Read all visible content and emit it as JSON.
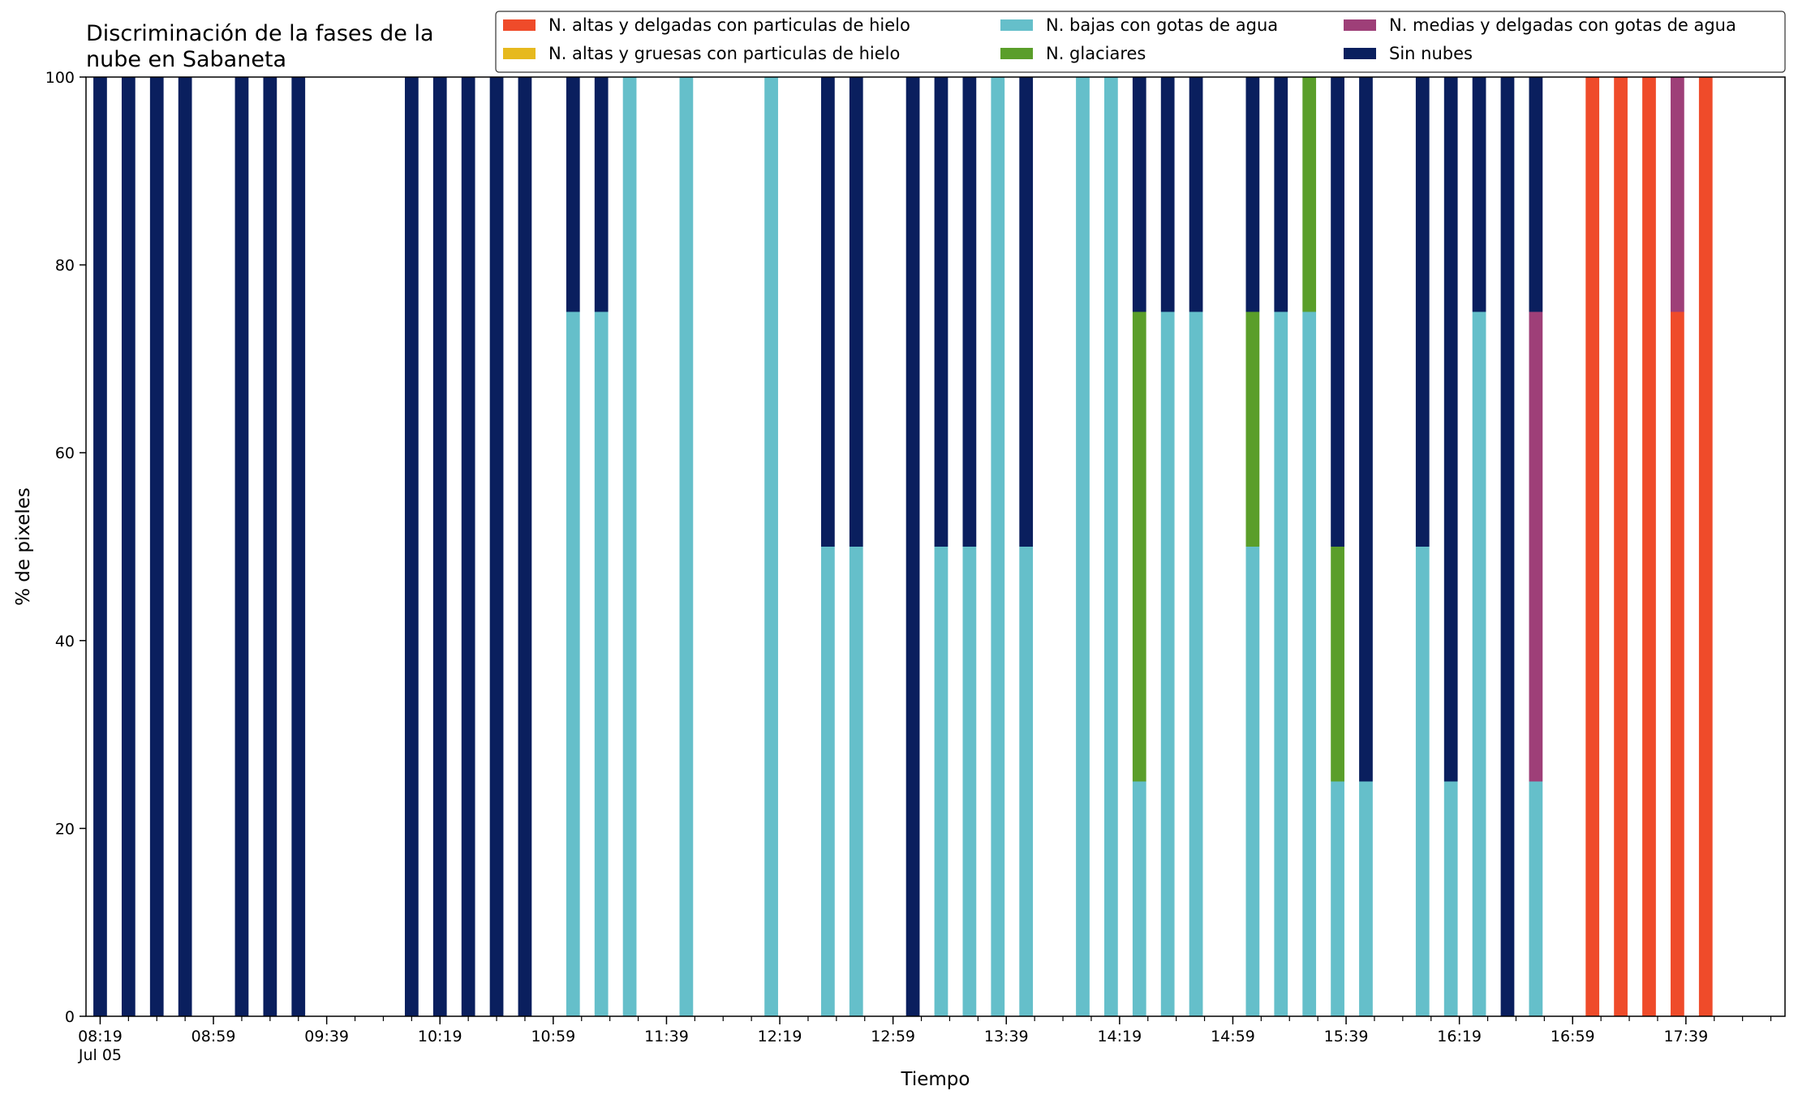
{
  "chart_data": {
    "type": "bar",
    "stacked": true,
    "title": "Discriminación de la fases de la\nnube en Sabaneta",
    "xlabel": "Tiempo",
    "ylabel": "% de pixeles",
    "ylim": [
      0,
      100
    ],
    "yticks": [
      0,
      20,
      40,
      60,
      80,
      100
    ],
    "xlim": [
      "08:14",
      "18:14"
    ],
    "xtick_labels": [
      {
        "time": "08:19",
        "label": "08:19",
        "sublabel": "Jul 05"
      },
      {
        "time": "08:59",
        "label": "08:59"
      },
      {
        "time": "09:39",
        "label": "09:39"
      },
      {
        "time": "10:19",
        "label": "10:19"
      },
      {
        "time": "10:59",
        "label": "10:59"
      },
      {
        "time": "11:39",
        "label": "11:39"
      },
      {
        "time": "12:19",
        "label": "12:19"
      },
      {
        "time": "12:59",
        "label": "12:59"
      },
      {
        "time": "13:39",
        "label": "13:39"
      },
      {
        "time": "14:19",
        "label": "14:19"
      },
      {
        "time": "14:59",
        "label": "14:59"
      },
      {
        "time": "15:39",
        "label": "15:39"
      },
      {
        "time": "16:19",
        "label": "16:19"
      },
      {
        "time": "16:59",
        "label": "16:59"
      },
      {
        "time": "17:39",
        "label": "17:39"
      }
    ],
    "minor_tick_interval_minutes": 10,
    "grid": false,
    "legend_position": "top-right",
    "legend_columns": 3,
    "series": [
      {
        "name": "N. altas y delgadas con particulas de hielo",
        "color": "#ef4b2a"
      },
      {
        "name": "N. altas y gruesas con particulas de hielo",
        "color": "#e6b91e"
      },
      {
        "name": "N. bajas con gotas de agua",
        "color": "#65bfca"
      },
      {
        "name": "N. glaciares",
        "color": "#5a9e2a"
      },
      {
        "name": "N. medias y delgadas con gotas de agua",
        "color": "#9e3f78"
      },
      {
        "name": "Sin nubes",
        "color": "#0a1f5e"
      }
    ],
    "x": [
      "08:19",
      "08:29",
      "08:39",
      "08:49",
      "09:09",
      "09:19",
      "09:29",
      "10:09",
      "10:19",
      "10:29",
      "10:39",
      "10:49",
      "11:06",
      "11:16",
      "11:26",
      "11:46",
      "12:16",
      "12:36",
      "12:46",
      "13:06",
      "13:16",
      "13:26",
      "13:36",
      "13:46",
      "14:06",
      "14:16",
      "14:26",
      "14:36",
      "14:46",
      "15:06",
      "15:16",
      "15:26",
      "15:36",
      "15:46",
      "16:06",
      "16:16",
      "16:26",
      "16:36",
      "16:46",
      "17:06",
      "17:16",
      "17:26",
      "17:36",
      "17:46"
    ],
    "values": {
      "N. altas y delgadas con particulas de hielo": [
        0,
        0,
        0,
        0,
        0,
        0,
        0,
        0,
        0,
        0,
        0,
        0,
        0,
        0,
        0,
        0,
        0,
        0,
        0,
        0,
        0,
        0,
        0,
        0,
        0,
        0,
        0,
        0,
        0,
        0,
        0,
        0,
        0,
        0,
        0,
        0,
        0,
        0,
        0,
        100,
        100,
        100,
        75,
        100
      ],
      "N. altas y gruesas con particulas de hielo": [
        0,
        0,
        0,
        0,
        0,
        0,
        0,
        0,
        0,
        0,
        0,
        0,
        0,
        0,
        0,
        0,
        0,
        0,
        0,
        0,
        0,
        0,
        0,
        0,
        0,
        0,
        0,
        0,
        0,
        0,
        0,
        0,
        0,
        0,
        0,
        0,
        0,
        0,
        0,
        0,
        0,
        0,
        0,
        0
      ],
      "N. bajas con gotas de agua": [
        0,
        0,
        0,
        0,
        0,
        0,
        0,
        0,
        0,
        0,
        0,
        0,
        75,
        75,
        100,
        100,
        100,
        50,
        50,
        0,
        50,
        50,
        100,
        50,
        100,
        100,
        25,
        75,
        75,
        50,
        75,
        75,
        25,
        25,
        50,
        25,
        75,
        0,
        25,
        0,
        0,
        0,
        0,
        0
      ],
      "N. glaciares": [
        0,
        0,
        0,
        0,
        0,
        0,
        0,
        0,
        0,
        0,
        0,
        0,
        0,
        0,
        0,
        0,
        0,
        0,
        0,
        0,
        0,
        0,
        0,
        0,
        0,
        0,
        50,
        0,
        0,
        25,
        0,
        25,
        25,
        0,
        0,
        0,
        0,
        0,
        0,
        0,
        0,
        0,
        0,
        0
      ],
      "N. medias y delgadas con gotas de agua": [
        0,
        0,
        0,
        0,
        0,
        0,
        0,
        0,
        0,
        0,
        0,
        0,
        0,
        0,
        0,
        0,
        0,
        0,
        0,
        0,
        0,
        0,
        0,
        0,
        0,
        0,
        0,
        0,
        0,
        0,
        0,
        0,
        0,
        0,
        0,
        0,
        0,
        0,
        50,
        0,
        0,
        0,
        25,
        0
      ],
      "Sin nubes": [
        100,
        100,
        100,
        100,
        100,
        100,
        100,
        100,
        100,
        100,
        100,
        100,
        25,
        25,
        0,
        0,
        0,
        50,
        50,
        100,
        50,
        50,
        0,
        50,
        0,
        0,
        25,
        25,
        25,
        25,
        25,
        0,
        50,
        75,
        50,
        75,
        25,
        100,
        25,
        0,
        0,
        0,
        0,
        0
      ]
    }
  }
}
